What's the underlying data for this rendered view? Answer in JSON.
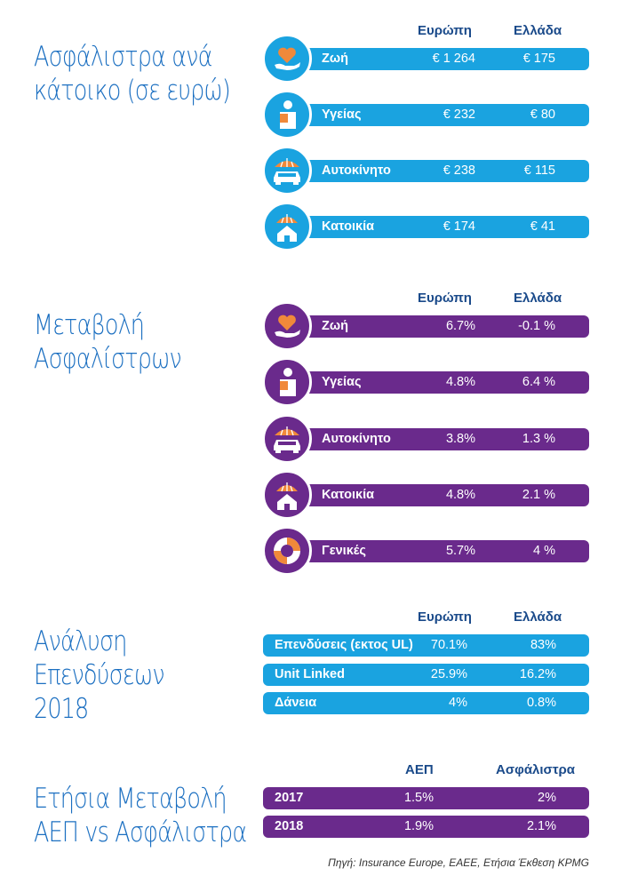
{
  "colors": {
    "blue": "#1aa3e0",
    "purple": "#6a2a8c",
    "title": "#1b6fc1",
    "heading": "#1a4a8a",
    "orange": "#f0893a"
  },
  "section1": {
    "title_line1": "Ασφάλιστρα ανά",
    "title_line2": "κάτοικο (σε ευρώ)",
    "col1": "Ευρώπη",
    "col2": "Ελλάδα",
    "rows": [
      {
        "label": "Ζωή",
        "europe": "€ 1 264",
        "greece": "€ 175",
        "icon": "heart-hand-icon"
      },
      {
        "label": "Υγείας",
        "europe": "€ 232",
        "greece": "€ 80",
        "icon": "injured-person-icon"
      },
      {
        "label": "Αυτοκίνητο",
        "europe": "€ 238",
        "greece": "€ 115",
        "icon": "car-umbrella-icon"
      },
      {
        "label": "Κατοικία",
        "europe": "€ 174",
        "greece": "€ 41",
        "icon": "house-umbrella-icon"
      }
    ]
  },
  "section2": {
    "title_line1": "Μεταβολή",
    "title_line2": "Ασφαλίστρων",
    "col1": "Ευρώπη",
    "col2": "Ελλάδα",
    "rows": [
      {
        "label": "Ζωή",
        "europe": "6.7%",
        "greece": "-0.1 %",
        "icon": "heart-hand-icon"
      },
      {
        "label": "Υγείας",
        "europe": "4.8%",
        "greece": "6.4 %",
        "icon": "injured-person-icon"
      },
      {
        "label": "Αυτοκίνητο",
        "europe": "3.8%",
        "greece": "1.3 %",
        "icon": "car-umbrella-icon"
      },
      {
        "label": "Κατοικία",
        "europe": "4.8%",
        "greece": "2.1 %",
        "icon": "house-umbrella-icon"
      },
      {
        "label": "Γενικές",
        "europe": "5.7%",
        "greece": "4 %",
        "icon": "lifebuoy-icon"
      }
    ]
  },
  "section3": {
    "title_line1": "Ανάλυση",
    "title_line2": "Επενδύσεων",
    "title_line3": "2018",
    "col1": "Ευρώπη",
    "col2": "Ελλάδα",
    "rows": [
      {
        "label": "Επενδύσεις (εκτος UL)",
        "europe": "70.1%",
        "greece": "83%"
      },
      {
        "label": "Unit Linked",
        "europe": "25.9%",
        "greece": "16.2%"
      },
      {
        "label": "Δάνεια",
        "europe": "4%",
        "greece": "0.8%"
      }
    ]
  },
  "section4": {
    "title_line1": "Ετήσια Μεταβολή",
    "title_line2": "ΑΕΠ vs Ασφάλιστρα",
    "col1": "ΑΕΠ",
    "col2": "Ασφάλιστρα",
    "rows": [
      {
        "label": "2017",
        "gdp": "1.5%",
        "premiums": "2%"
      },
      {
        "label": "2018",
        "gdp": "1.9%",
        "premiums": "2.1%"
      }
    ]
  },
  "source": "Πηγή: Insurance Europe, ΕΑΕΕ, Ετήσια Έκθεση KPMG"
}
